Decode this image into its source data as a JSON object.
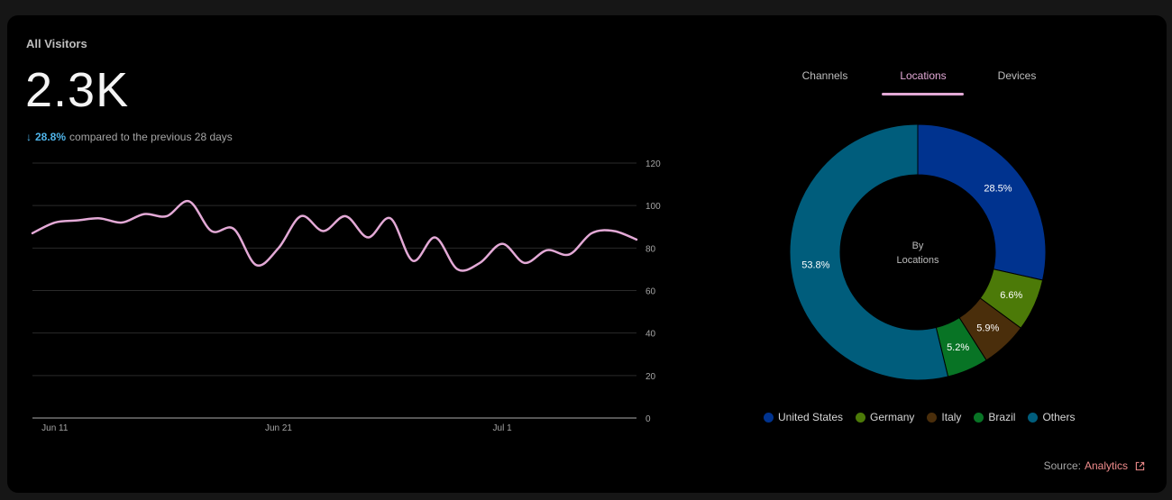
{
  "header": {
    "title": "All Visitors",
    "value": "2.3K",
    "change_pct": "28.8%",
    "change_text": "compared to the previous 28 days"
  },
  "tabs": [
    {
      "label": "Channels",
      "active": false
    },
    {
      "label": "Locations",
      "active": true
    },
    {
      "label": "Devices",
      "active": false
    }
  ],
  "colors": {
    "line": "#e3a9d6",
    "accent": "#e3a9d6",
    "down": "#4fb3e8",
    "grid": "#2a2a2a",
    "link": "#f08c8c"
  },
  "chart_data": [
    {
      "type": "line",
      "ylim": [
        0,
        120
      ],
      "yticks": [
        "0",
        "20",
        "40",
        "60",
        "80",
        "100",
        "120"
      ],
      "xtick_labels": [
        "Jun 11",
        "Jun 21",
        "Jul 1"
      ],
      "xtick_index": [
        1,
        11,
        21
      ],
      "series": [
        {
          "values": [
            87,
            92,
            93,
            94,
            92,
            96,
            95,
            102,
            88,
            89,
            72,
            80,
            95,
            88,
            95,
            85,
            94,
            74,
            85,
            70,
            73,
            82,
            73,
            79,
            77,
            87,
            88,
            84
          ]
        }
      ],
      "grid": true,
      "legend": "none"
    },
    {
      "type": "pie",
      "center_label": [
        "By",
        "Locations"
      ],
      "categories": [
        "United States",
        "Germany",
        "Italy",
        "Brazil",
        "Others"
      ],
      "values": [
        28.5,
        6.6,
        5.9,
        5.2,
        53.8
      ],
      "value_labels": [
        "28.5%",
        "6.6%",
        "5.9%",
        "5.2%",
        "53.8%"
      ],
      "colors": [
        "#00338f",
        "#4c7a08",
        "#4a2e0b",
        "#087425",
        "#005d7c"
      ],
      "legend": "bottom"
    }
  ],
  "source": {
    "prefix": "Source:",
    "link": "Analytics"
  }
}
